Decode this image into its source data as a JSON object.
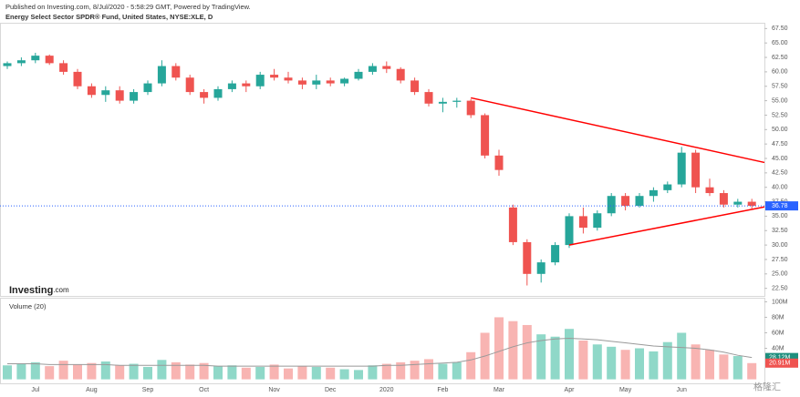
{
  "header": {
    "published": "Published on Investing.com, 8/Jul/2020 - 5:58:29 GMT, Powered by TradingView.",
    "instrument": "Energy Select Sector SPDR® Fund, United States, NYSE:XLE, D"
  },
  "logo": {
    "brand": "Investing",
    "suffix": ".com"
  },
  "watermark": "格隆汇",
  "chart_data": {
    "type": "candlestick",
    "categories": [
      null,
      null,
      "Jul",
      null,
      null,
      null,
      "Aug",
      null,
      null,
      null,
      "Sep",
      null,
      null,
      null,
      "Oct",
      null,
      null,
      null,
      null,
      "Nov",
      null,
      null,
      null,
      "Dec",
      null,
      null,
      null,
      "2020",
      null,
      null,
      null,
      "Feb",
      null,
      null,
      null,
      "Mar",
      null,
      null,
      null,
      null,
      "Apr",
      null,
      null,
      null,
      "May",
      null,
      null,
      null,
      "Jun",
      null,
      null,
      null,
      null,
      null
    ],
    "open": [
      61.0,
      61.5,
      62.0,
      62.8,
      61.5,
      60.0,
      57.5,
      56.0,
      56.8,
      55.0,
      56.5,
      58.0,
      61.0,
      59.0,
      56.5,
      55.5,
      57.0,
      58.0,
      57.5,
      59.5,
      59.0,
      58.5,
      57.8,
      58.5,
      58.0,
      58.8,
      60.0,
      61.0,
      60.5,
      58.5,
      56.5,
      54.5,
      54.8,
      55.0,
      52.5,
      45.5,
      36.5,
      30.5,
      25.0,
      27.0,
      30.0,
      35.0,
      33.0,
      35.5,
      38.5,
      36.8,
      38.5,
      39.5,
      40.5,
      46.0,
      40.0,
      39.0,
      37.0,
      37.5
    ],
    "high": [
      61.8,
      62.5,
      63.3,
      63.0,
      62.0,
      60.5,
      58.0,
      57.5,
      57.5,
      57.0,
      58.5,
      62.0,
      61.5,
      59.5,
      57.0,
      57.5,
      58.5,
      58.5,
      60.0,
      60.5,
      60.0,
      59.0,
      59.5,
      59.0,
      59.0,
      60.5,
      61.5,
      61.8,
      60.8,
      59.0,
      57.0,
      55.5,
      55.5,
      55.3,
      52.8,
      46.5,
      37.0,
      31.0,
      27.5,
      30.5,
      35.5,
      36.5,
      36.0,
      39.0,
      39.0,
      39.0,
      40.0,
      41.0,
      47.0,
      46.5,
      41.5,
      39.5,
      38.0,
      38.0
    ],
    "low": [
      60.5,
      61.0,
      61.5,
      61.2,
      59.5,
      57.0,
      55.5,
      54.8,
      54.5,
      54.5,
      56.0,
      57.5,
      58.5,
      56.0,
      54.5,
      55.0,
      56.5,
      56.5,
      57.0,
      58.5,
      58.0,
      57.0,
      57.0,
      57.5,
      57.5,
      58.5,
      59.5,
      59.8,
      58.0,
      56.0,
      54.0,
      53.0,
      53.8,
      52.0,
      45.0,
      42.0,
      30.0,
      23.0,
      23.5,
      26.5,
      29.5,
      32.0,
      32.5,
      35.0,
      36.0,
      36.5,
      37.5,
      39.0,
      40.0,
      39.0,
      38.5,
      36.5,
      36.5,
      36.3
    ],
    "close": [
      61.5,
      62.0,
      62.8,
      61.5,
      60.0,
      57.5,
      56.0,
      56.8,
      55.0,
      56.5,
      58.0,
      61.0,
      59.0,
      56.5,
      55.5,
      57.0,
      58.0,
      57.5,
      59.5,
      59.0,
      58.5,
      57.8,
      58.5,
      58.0,
      58.8,
      60.0,
      61.0,
      60.5,
      58.5,
      56.5,
      54.5,
      54.8,
      55.0,
      52.5,
      45.5,
      43.0,
      30.5,
      25.0,
      27.0,
      30.0,
      35.0,
      33.0,
      35.5,
      38.5,
      36.8,
      38.5,
      39.5,
      40.5,
      46.0,
      40.0,
      39.0,
      37.0,
      37.5,
      36.8
    ],
    "up_color": "#26a69a",
    "down_color": "#ef5350",
    "ylim": [
      21.5,
      68.5
    ],
    "yticks": [
      {
        "value": 22.5,
        "label": "22.50"
      },
      {
        "value": 25,
        "label": "25.00"
      },
      {
        "value": 27.5,
        "label": "27.50"
      },
      {
        "value": 30,
        "label": "30.00"
      },
      {
        "value": 32.5,
        "label": "32.50"
      },
      {
        "value": 35,
        "label": "35.00"
      },
      {
        "value": 37.5,
        "label": "37.50"
      },
      {
        "value": 40,
        "label": "40.00"
      },
      {
        "value": 42.5,
        "label": "42.50"
      },
      {
        "value": 45,
        "label": "45.00"
      },
      {
        "value": 47.5,
        "label": "47.50"
      },
      {
        "value": 50,
        "label": "50.00"
      },
      {
        "value": 52.5,
        "label": "52.50"
      },
      {
        "value": 55,
        "label": "55.00"
      },
      {
        "value": 57.5,
        "label": "57.50"
      },
      {
        "value": 60,
        "label": "60.00"
      },
      {
        "value": 62.5,
        "label": "62.50"
      },
      {
        "value": 65,
        "label": "65.00"
      },
      {
        "value": 67.5,
        "label": "67.50"
      }
    ],
    "last_price": 36.78,
    "last_price_color": "#2962ff",
    "trendlines": [
      {
        "from": [
          33,
          55.5
        ],
        "to": [
          54.5,
          44.3
        ],
        "color": "#ff0000"
      },
      {
        "from": [
          40,
          30.0
        ],
        "to": [
          54.5,
          36.6
        ],
        "color": "#ff0000"
      }
    ],
    "volume": {
      "title": "Volume (20)",
      "values": [
        18,
        20,
        22,
        17,
        24,
        19,
        21,
        23,
        18,
        20,
        16,
        25,
        22,
        19,
        21,
        17,
        18,
        15,
        16,
        19,
        14,
        17,
        16,
        15,
        13,
        12,
        18,
        20,
        22,
        24,
        26,
        20,
        22,
        35,
        60,
        80,
        75,
        70,
        58,
        55,
        65,
        50,
        45,
        42,
        38,
        40,
        36,
        48,
        60,
        45,
        38,
        32,
        30,
        20.91
      ],
      "ma": [
        20,
        20,
        20,
        19,
        19,
        19,
        19,
        19,
        18,
        18,
        18,
        18,
        18,
        18,
        18,
        17,
        17,
        17,
        17,
        17,
        17,
        17,
        17,
        17,
        17,
        17,
        17,
        18,
        18,
        19,
        20,
        21,
        22,
        25,
        30,
        36,
        42,
        47,
        50,
        52,
        53,
        52,
        51,
        49,
        47,
        45,
        43,
        42,
        41,
        40,
        38,
        35,
        31,
        28.12
      ],
      "up_color": "#8fd8c8",
      "down_color": "#f8b4b2",
      "ma_color": "#999999",
      "last_labels": [
        {
          "value": 28.12,
          "label": "28.12M",
          "color": "#1e8f7e"
        },
        {
          "value": 20.91,
          "label": "20.91M",
          "color": "#ef5350"
        }
      ],
      "ylim": [
        -4,
        104
      ],
      "yticks": [
        {
          "value": 40,
          "label": "40M"
        },
        {
          "value": 60,
          "label": "60M"
        },
        {
          "value": 80,
          "label": "80M"
        },
        {
          "value": 100,
          "label": "100M"
        }
      ]
    }
  }
}
